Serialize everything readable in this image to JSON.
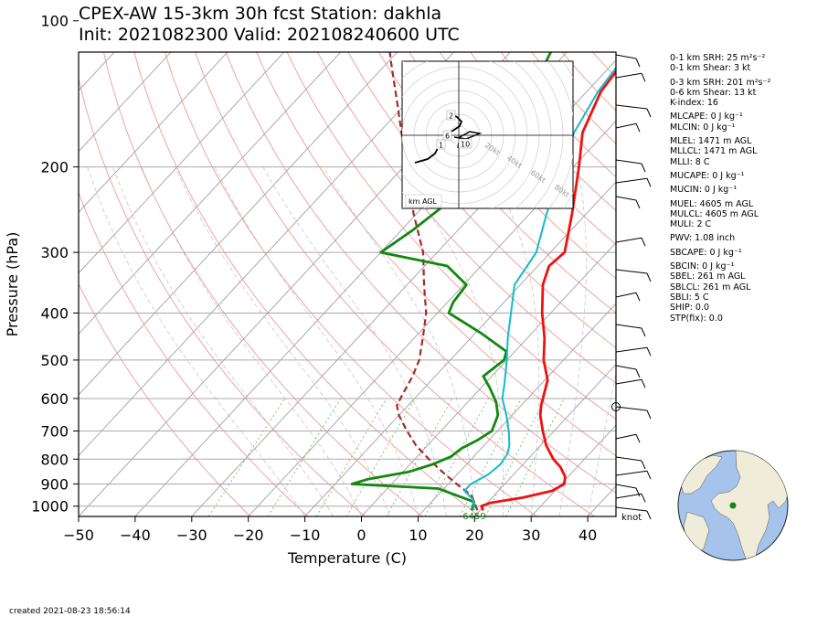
{
  "title_line1": "CPEX-AW 15-3km  30h fcst  Station: dakhla",
  "title_line2": "Init: 2021082300  Valid: 202108240600 UTC",
  "created": "created 2021-08-23 18:56:14",
  "colors": {
    "temperature": "#ee1111",
    "dewpoint": "#118811",
    "wetbulb": "#11bbcc",
    "parcel": "#a52a2a",
    "isotherm": "#aaaaaa",
    "dry_adiabat": "#f5a0a0",
    "moist_adiabat": "#c8c8c8",
    "mixing_ratio": "#55bb55",
    "ocean": "#a6c3ec",
    "land": "#efecd9"
  },
  "stats": [
    "0-1 km SRH: 25 m²s⁻²",
    "0-1 km Shear: 3 kt",
    "0-3 km SRH: 201 m²s⁻²",
    "0-6 km Shear: 13 kt",
    "K-index: 16",
    "MLCAPE: 0 J kg⁻¹",
    "MLCIN: 0 J kg⁻¹",
    "MLEL: 1471 m AGL",
    "MLLCL: 1471 m AGL",
    "MLLI: 8 C",
    "MUCAPE: 0 J kg⁻¹",
    "MUCIN: 0 J kg⁻¹",
    "MUEL: 4605 m AGL",
    "MULCL: 4605 m AGL",
    "MULI: 2 C",
    "PWV: 1.08 inch",
    "SBCAPE: 0 J kg⁻¹",
    "SBCIN: 0 J kg⁻¹",
    "SBEL: 261 m AGL",
    "SBLCL: 261 m AGL",
    "SBLI: 5 C",
    "SHIP: 0.0",
    "STP(fix): 0.0"
  ],
  "hodograph": {
    "rings_kt": [
      "20kt",
      "40kt",
      "60kt",
      "80kt"
    ],
    "height_labels": [
      "2",
      "6",
      "1",
      "10"
    ],
    "caption": "km AGL"
  },
  "wind_units": "knot",
  "surface_marker": {
    "label": "6459"
  },
  "chart_data": {
    "type": "skew-t",
    "xlabel": "Temperature (C)",
    "ylabel": "Pressure (hPa)",
    "xlim": [
      -50,
      45
    ],
    "ylim_hPa": [
      1050,
      100
    ],
    "x_ticks": [
      -50,
      -40,
      -30,
      -20,
      -10,
      0,
      10,
      20,
      30,
      40
    ],
    "x_tick_labels": [
      "−50",
      "−40",
      "−30",
      "−20",
      "−10",
      "0",
      "10",
      "20",
      "30",
      "40"
    ],
    "y_ticks": [
      100,
      200,
      300,
      400,
      500,
      600,
      700,
      800,
      900,
      1000
    ],
    "y_tick_labels": [
      "100",
      "200",
      "300",
      "400",
      "500",
      "600",
      "700",
      "800",
      "900",
      "1000"
    ],
    "temperature": [
      [
        1020,
        20.5
      ],
      [
        1000,
        19.5
      ],
      [
        985,
        20.5
      ],
      [
        960,
        25.5
      ],
      [
        930,
        29.5
      ],
      [
        900,
        30.5
      ],
      [
        870,
        29.5
      ],
      [
        830,
        27.0
      ],
      [
        800,
        24.5
      ],
      [
        750,
        21.0
      ],
      [
        700,
        18.0
      ],
      [
        650,
        15.0
      ],
      [
        620,
        13.5
      ],
      [
        550,
        10.5
      ],
      [
        500,
        6.5
      ],
      [
        450,
        3.0
      ],
      [
        400,
        -1.5
      ],
      [
        350,
        -6.0
      ],
      [
        320,
        -8.0
      ],
      [
        300,
        -7.5
      ],
      [
        250,
        -12.5
      ],
      [
        200,
        -19.0
      ],
      [
        170,
        -24.0
      ],
      [
        140,
        -27.5
      ],
      [
        120,
        -28.5
      ],
      [
        100,
        -26.0
      ]
    ],
    "dewpoint": [
      [
        1020,
        18.5
      ],
      [
        1000,
        18.0
      ],
      [
        980,
        17.5
      ],
      [
        920,
        9.0
      ],
      [
        900,
        -7.0
      ],
      [
        880,
        -5.0
      ],
      [
        850,
        1.0
      ],
      [
        820,
        4.0
      ],
      [
        790,
        6.0
      ],
      [
        760,
        6.5
      ],
      [
        730,
        8.0
      ],
      [
        700,
        9.0
      ],
      [
        650,
        7.5
      ],
      [
        610,
        5.0
      ],
      [
        570,
        1.5
      ],
      [
        540,
        -1.5
      ],
      [
        500,
        -0.5
      ],
      [
        480,
        -1.5
      ],
      [
        440,
        -9.0
      ],
      [
        400,
        -18.0
      ],
      [
        380,
        -19.0
      ],
      [
        350,
        -19.5
      ],
      [
        320,
        -26.0
      ],
      [
        300,
        -40.0
      ],
      [
        270,
        -38.0
      ],
      [
        240,
        -36.5
      ],
      [
        200,
        -39.0
      ],
      [
        175,
        -34.0
      ],
      [
        150,
        -37.5
      ],
      [
        130,
        -41.0
      ],
      [
        115,
        -43.0
      ],
      [
        100,
        -41.0
      ]
    ],
    "wetbulb": [
      [
        1020,
        18.8
      ],
      [
        1000,
        18.2
      ],
      [
        970,
        17.0
      ],
      [
        930,
        14.0
      ],
      [
        900,
        14.0
      ],
      [
        860,
        15.5
      ],
      [
        820,
        16.0
      ],
      [
        780,
        15.5
      ],
      [
        750,
        14.5
      ],
      [
        700,
        12.0
      ],
      [
        650,
        9.0
      ],
      [
        600,
        5.5
      ],
      [
        560,
        3.5
      ],
      [
        500,
        0.0
      ],
      [
        450,
        -3.5
      ],
      [
        400,
        -7.0
      ],
      [
        350,
        -11.0
      ],
      [
        300,
        -12.5
      ],
      [
        250,
        -17.0
      ],
      [
        200,
        -22.0
      ],
      [
        170,
        -25.5
      ],
      [
        140,
        -28.0
      ],
      [
        120,
        -29.0
      ],
      [
        100,
        -26.5
      ]
    ],
    "parcel": [
      [
        1020,
        19.5
      ],
      [
        950,
        16.0
      ],
      [
        900,
        11.5
      ],
      [
        850,
        7.0
      ],
      [
        800,
        2.5
      ],
      [
        750,
        -2.0
      ],
      [
        700,
        -6.0
      ],
      [
        650,
        -10.0
      ],
      [
        620,
        -12.0
      ],
      [
        580,
        -13.0
      ],
      [
        540,
        -14.0
      ],
      [
        500,
        -15.5
      ],
      [
        450,
        -18.5
      ],
      [
        400,
        -22.0
      ],
      [
        350,
        -27.0
      ],
      [
        300,
        -32.5
      ],
      [
        250,
        -40.5
      ],
      [
        200,
        -49.5
      ],
      [
        150,
        -61.0
      ],
      [
        120,
        -70.0
      ],
      [
        100,
        -77.0
      ]
    ]
  }
}
